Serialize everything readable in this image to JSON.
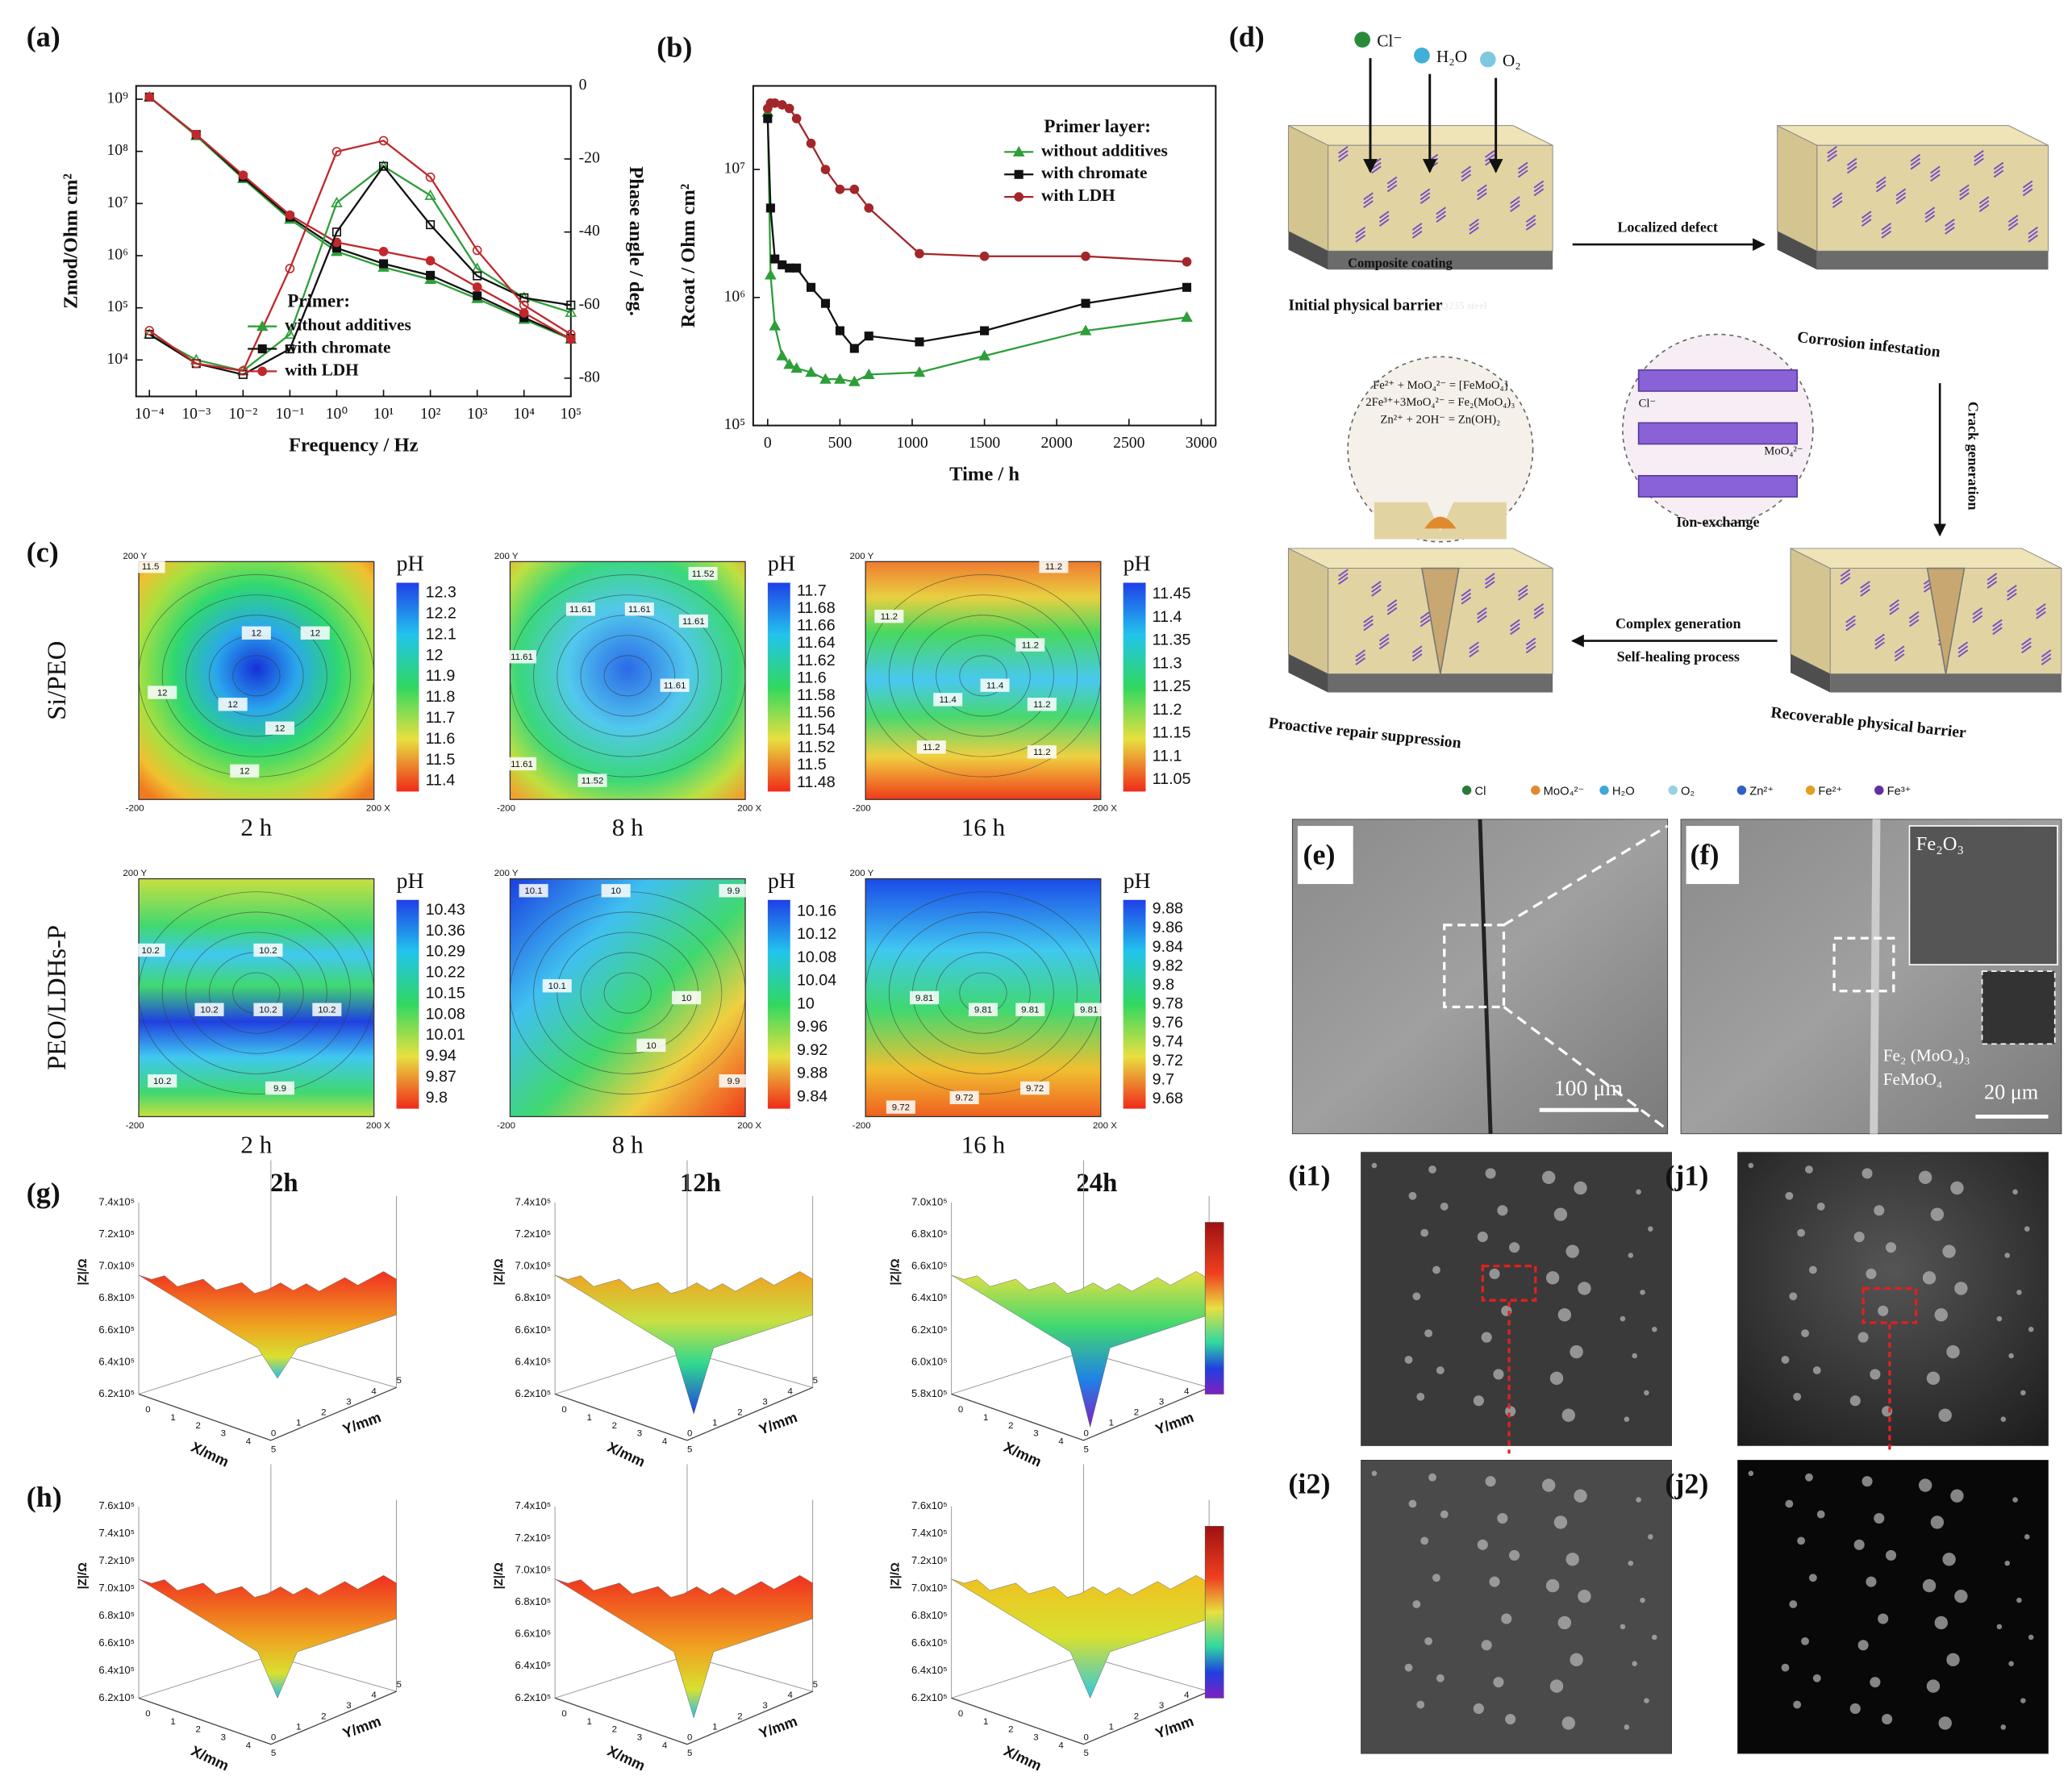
{
  "chart_data": [
    {
      "type": "line",
      "label": "(a)",
      "xlabel": "Frequency / Hz",
      "ylabel": "Zmod/Ohm cm²",
      "y2label": "Phase angle / deg.",
      "xscale": "log",
      "yscale": "log",
      "xlim": [
        5.2e-05,
        100000
      ],
      "ylim": [
        2000,
        1800000000
      ],
      "y2lim": [
        -85,
        0
      ],
      "xticks": [
        {
          "value": 0.0001,
          "label": "10⁻⁴"
        },
        {
          "value": 0.001,
          "label": "10⁻³"
        },
        {
          "value": 0.01,
          "label": "10⁻²"
        },
        {
          "value": 0.1,
          "label": "10⁻¹"
        },
        {
          "value": 1,
          "label": "10⁰"
        },
        {
          "value": 10,
          "label": "10¹"
        },
        {
          "value": 100,
          "label": "10²"
        },
        {
          "value": 1000,
          "label": "10³"
        },
        {
          "value": 10000,
          "label": "10⁴"
        },
        {
          "value": 100000,
          "label": "10⁵"
        }
      ],
      "yticks": [
        {
          "value": 10000,
          "label": "10⁴"
        },
        {
          "value": 100000,
          "label": "10⁵"
        },
        {
          "value": 1000000,
          "label": "10⁶"
        },
        {
          "value": 10000000,
          "label": "10⁷"
        },
        {
          "value": 100000000,
          "label": "10⁸"
        },
        {
          "value": 1000000000,
          "label": "10⁹"
        }
      ],
      "y2ticks": [
        0,
        -20,
        -40,
        -60,
        -80
      ],
      "legend_title": "Primer:",
      "legend": "lower center",
      "x": [
        0.0001,
        0.001,
        0.01,
        0.1,
        1,
        10,
        100,
        1000,
        10000,
        100000
      ],
      "series": [
        {
          "name": "without additives",
          "color": "#2e9e3a",
          "marker": "triangle",
          "marker_filled": true,
          "values": [
            1100000000,
            200000000,
            30000000,
            5000000,
            1200000,
            600000,
            350000,
            150000,
            60000,
            25000
          ]
        },
        {
          "name": "with chromate",
          "color": "#111111",
          "marker": "square",
          "marker_filled": true,
          "values": [
            1100000000,
            210000000,
            32000000,
            5500000,
            1400000,
            700000,
            420000,
            170000,
            65000,
            26000
          ]
        },
        {
          "name": "with LDH",
          "color": "#c0282d",
          "marker": "circle",
          "marker_filled": true,
          "values": [
            1100000000,
            210000000,
            35000000,
            6000000,
            1800000,
            1200000,
            800000,
            250000,
            80000,
            25000
          ]
        },
        {
          "color": "#2e9e3a",
          "axis": "y2",
          "marker": "triangle",
          "marker_filled": false,
          "values": [
            -68,
            -75,
            -78,
            -68,
            -32,
            -22,
            -30,
            -50,
            -58,
            -62
          ]
        },
        {
          "color": "#111111",
          "axis": "y2",
          "marker": "square",
          "marker_filled": false,
          "values": [
            -68,
            -76,
            -79,
            -72,
            -40,
            -22,
            -38,
            -52,
            -58,
            -60
          ]
        },
        {
          "color": "#c0282d",
          "axis": "y2",
          "marker": "circle",
          "marker_filled": false,
          "values": [
            -67,
            -76,
            -78,
            -50,
            -18,
            -15,
            -25,
            -45,
            -60,
            -68
          ]
        }
      ]
    },
    {
      "type": "line",
      "label": "(b)",
      "xlabel": "Time / h",
      "ylabel": "Rcoat / Ohm cm²",
      "xscale": "linear",
      "yscale": "log",
      "xlim": [
        -100,
        3100
      ],
      "ylim": [
        100000,
        45000000
      ],
      "xticks": [
        0,
        500,
        1000,
        1500,
        2000,
        2500,
        3000
      ],
      "yticks": [
        {
          "value": 100000,
          "label": "10⁵"
        },
        {
          "value": 1000000,
          "label": "10⁶"
        },
        {
          "value": 10000000,
          "label": "10⁷"
        }
      ],
      "legend_title": "Primer layer:",
      "legend": "upper right",
      "x": [
        0,
        20,
        50,
        100,
        150,
        200,
        300,
        400,
        500,
        600,
        700,
        1050,
        1500,
        2200,
        2900
      ],
      "series": [
        {
          "name": "without additives",
          "color": "#2e9e3a",
          "marker": "triangle",
          "marker_filled": true,
          "values": [
            28000000,
            1500000,
            600000,
            350000,
            300000,
            280000,
            260000,
            230000,
            230000,
            220000,
            250000,
            260000,
            350000,
            550000,
            700000
          ]
        },
        {
          "name": "with chromate",
          "color": "#111111",
          "marker": "square",
          "marker_filled": true,
          "values": [
            25000000,
            5000000,
            2000000,
            1800000,
            1700000,
            1700000,
            1200000,
            900000,
            550000,
            400000,
            500000,
            450000,
            550000,
            900000,
            1200000
          ]
        },
        {
          "name": "with LDH",
          "color": "#a3262a",
          "marker": "circle",
          "marker_filled": true,
          "values": [
            30000000,
            33000000,
            33000000,
            32000000,
            30000000,
            25000000,
            16000000,
            10000000,
            7000000,
            7000000,
            5000000,
            2200000,
            2100000,
            2100000,
            1900000
          ]
        }
      ]
    }
  ],
  "ph_maps": {
    "label": "(c)",
    "unit": "pH",
    "rows": [
      "Si/PEO",
      "PEO/LDHs-P"
    ],
    "times": [
      "2 h",
      "8 h",
      "16 h"
    ],
    "axis_labels": [
      "200 Y",
      "-200",
      "200 X"
    ],
    "maps": [
      [
        {
          "ticks": [
            12.3,
            12.2,
            12.1,
            12,
            11.9,
            11.8,
            11.7,
            11.6,
            11.5,
            11.4
          ],
          "contours": [
            12,
            12,
            12,
            12,
            12,
            12,
            11.5
          ]
        },
        {
          "ticks": [
            11.7,
            11.68,
            11.66,
            11.64,
            11.62,
            11.6,
            11.58,
            11.56,
            11.54,
            11.52,
            11.5,
            11.48
          ],
          "contours": [
            11.52,
            11.61,
            11.61,
            11.61,
            11.61,
            11.61,
            11.61,
            11.52
          ]
        },
        {
          "ticks": [
            11.45,
            11.4,
            11.35,
            11.3,
            11.25,
            11.2,
            11.15,
            11.1,
            11.05
          ],
          "contours": [
            11.2,
            11.2,
            11.2,
            11.4,
            11.4,
            11.2,
            11.2,
            11.2
          ]
        }
      ],
      [
        {
          "ticks": [
            10.43,
            10.36,
            10.29,
            10.22,
            10.15,
            10.08,
            10.01,
            9.94,
            9.87,
            9.8
          ],
          "contours": [
            10.2,
            10.2,
            10.2,
            10.2,
            10.2,
            10.2,
            9.9
          ]
        },
        {
          "ticks": [
            10.16,
            10.12,
            10.08,
            10.04,
            10,
            9.96,
            9.92,
            9.88,
            9.84
          ],
          "contours": [
            10.1,
            10.1,
            10,
            10,
            10,
            9.9,
            9.9
          ]
        },
        {
          "ticks": [
            9.88,
            9.86,
            9.84,
            9.82,
            9.8,
            9.78,
            9.76,
            9.74,
            9.72,
            9.7,
            9.68
          ],
          "contours": [
            9.81,
            9.81,
            9.81,
            9.81,
            9.72,
            9.72,
            9.72
          ]
        }
      ]
    ]
  },
  "diagram": {
    "label": "(d)",
    "species": [
      "Cl⁻",
      "H₂O",
      "O₂"
    ],
    "block_labels": [
      "Composite coating",
      "Q235 steel"
    ],
    "stages": [
      "Initial physical barrier",
      "Corrosion infestation",
      "Recoverable physical barrier",
      "Proactive repair suppression"
    ],
    "arrows": [
      "Localized defect",
      "Crack generation",
      "Complex generation",
      "Self-healing process"
    ],
    "equations": [
      "Fe²⁺ + MoO₄²⁻ = [FeMoO₄]",
      "2Fe³⁺+3MoO₄²⁻ = Fe₂(MoO₄)₃",
      "Zn²⁺ + 2OH⁻ = Zn(OH)₂"
    ],
    "ion_exchange": "Ion-exchange",
    "inset_ions": [
      "Cl⁻",
      "MoO₄²⁻"
    ],
    "legend": [
      "Cl",
      "MoO₄²⁻",
      "H₂O",
      "O₂",
      "Zn²⁺",
      "Fe²⁺",
      "Fe³⁺"
    ]
  },
  "sem": {
    "e": {
      "label": "(e)",
      "scale": "100 μm"
    },
    "f": {
      "label": "(f)",
      "scale": "20 μm",
      "annotations": [
        "Fe₂O₃",
        "Fe₂ (MoO₄)₃",
        "FeMoO₄"
      ]
    },
    "i1": "(i1)",
    "j1": "(j1)",
    "i2": "(i2)",
    "j2": "(j2)"
  },
  "surface_plots": {
    "zlabel": "|Z|/Ω",
    "xlabel": "X/mm",
    "ylabel": "Y/mm",
    "xyticks": [
      0,
      1,
      2,
      3,
      4,
      5
    ],
    "rows": [
      {
        "label": "(g)",
        "titles": [
          "2h",
          "12h",
          "24h"
        ],
        "plots": [
          {
            "zticks": [
              "7.4x10⁵",
              "7.2x10⁵",
              "7.0x10⁵",
              "6.8x10⁵",
              "6.6x10⁵",
              "6.4x10⁵",
              "6.2x10⁵"
            ]
          },
          {
            "zticks": [
              "7.4x10⁵",
              "7.2x10⁵",
              "7.0x10⁵",
              "6.8x10⁵",
              "6.6x10⁵",
              "6.4x10⁵",
              "6.2x10⁵"
            ]
          },
          {
            "zticks": [
              "7.0x10⁵",
              "6.8x10⁵",
              "6.6x10⁵",
              "6.4x10⁵",
              "6.2x10⁵",
              "6.0x10⁵",
              "5.8x10⁵"
            ]
          }
        ]
      },
      {
        "label": "(h)",
        "plots": [
          {
            "zticks": [
              "7.6x10⁵",
              "7.4x10⁵",
              "7.2x10⁵",
              "7.0x10⁵",
              "6.8x10⁵",
              "6.6x10⁵",
              "6.4x10⁵",
              "6.2x10⁵"
            ]
          },
          {
            "zticks": [
              "7.4x10⁵",
              "7.2x10⁵",
              "7.0x10⁵",
              "6.8x10⁵",
              "6.6x10⁵",
              "6.4x10⁵",
              "6.2x10⁵"
            ]
          },
          {
            "zticks": [
              "7.6x10⁵",
              "7.4x10⁵",
              "7.2x10⁵",
              "7.0x10⁵",
              "6.8x10⁵",
              "6.6x10⁵",
              "6.4x10⁵",
              "6.2x10⁵"
            ]
          }
        ]
      }
    ]
  }
}
